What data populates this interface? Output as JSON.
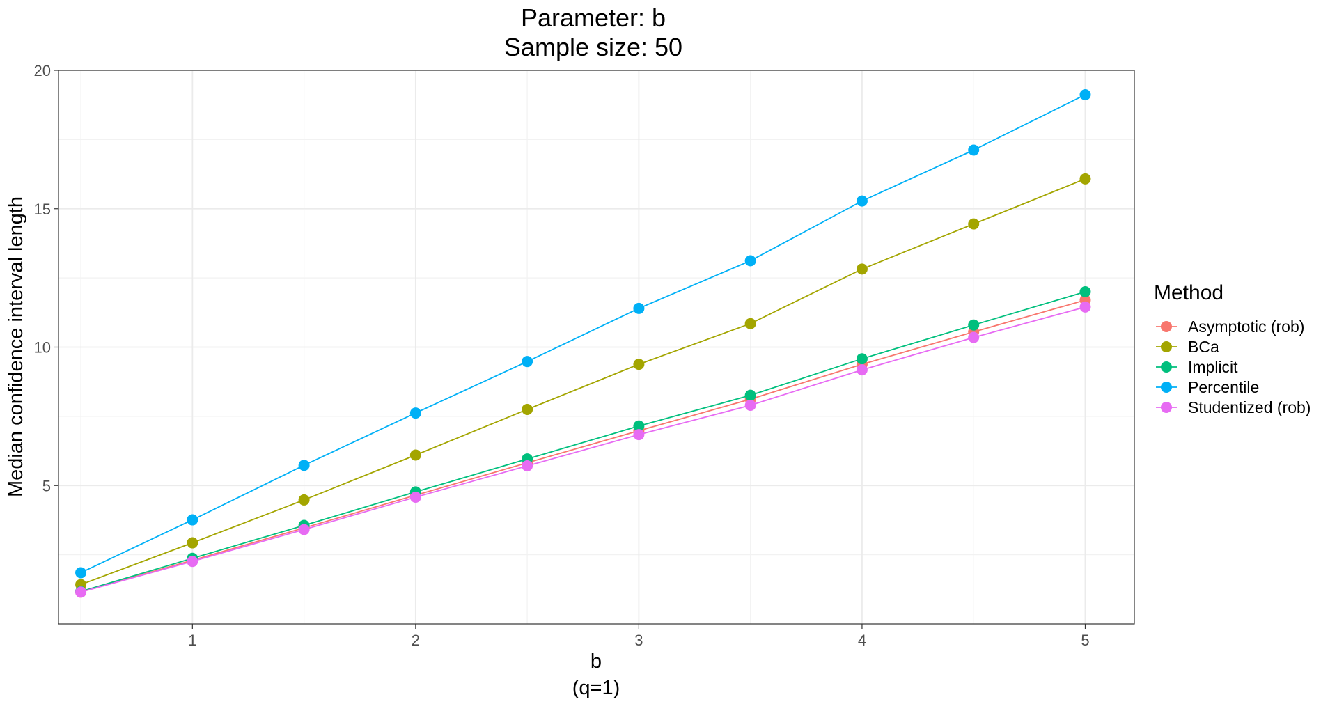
{
  "chart_data": {
    "type": "line",
    "title": "Parameter: b",
    "subtitle": "Sample size: 50",
    "xlabel": "b",
    "xlabel_sub": "(q=1)",
    "ylabel": "Median confidence interval length",
    "xlim": [
      0.4,
      5.22
    ],
    "ylim": [
      0,
      20
    ],
    "x_ticks": [
      1,
      2,
      3,
      4,
      5
    ],
    "y_ticks": [
      5,
      10,
      15,
      20
    ],
    "grid": true,
    "legend_title": "Method",
    "legend_position": "right",
    "x": [
      0.5,
      1,
      1.5,
      2,
      2.5,
      3,
      3.5,
      4,
      4.5,
      5
    ],
    "series": [
      {
        "name": "Asymptotic (rob)",
        "color": "#F8766D",
        "values": [
          1.15,
          2.3,
          3.47,
          4.65,
          5.82,
          6.98,
          8.12,
          9.38,
          10.55,
          11.7
        ]
      },
      {
        "name": "BCa",
        "color": "#A3A500",
        "values": [
          1.42,
          2.93,
          4.48,
          6.1,
          7.75,
          9.38,
          10.85,
          12.82,
          14.45,
          16.08
        ]
      },
      {
        "name": "Implicit",
        "color": "#00BF7D",
        "values": [
          1.17,
          2.37,
          3.56,
          4.77,
          5.96,
          7.15,
          8.26,
          9.58,
          10.8,
          12.0
        ]
      },
      {
        "name": "Percentile",
        "color": "#00B0F6",
        "values": [
          1.85,
          3.76,
          5.73,
          7.62,
          9.48,
          11.4,
          13.12,
          15.28,
          17.12,
          19.12
        ]
      },
      {
        "name": "Studentized (rob)",
        "color": "#E76BF3",
        "values": [
          1.15,
          2.26,
          3.41,
          4.58,
          5.71,
          6.84,
          7.9,
          9.18,
          10.35,
          11.45
        ]
      }
    ]
  }
}
